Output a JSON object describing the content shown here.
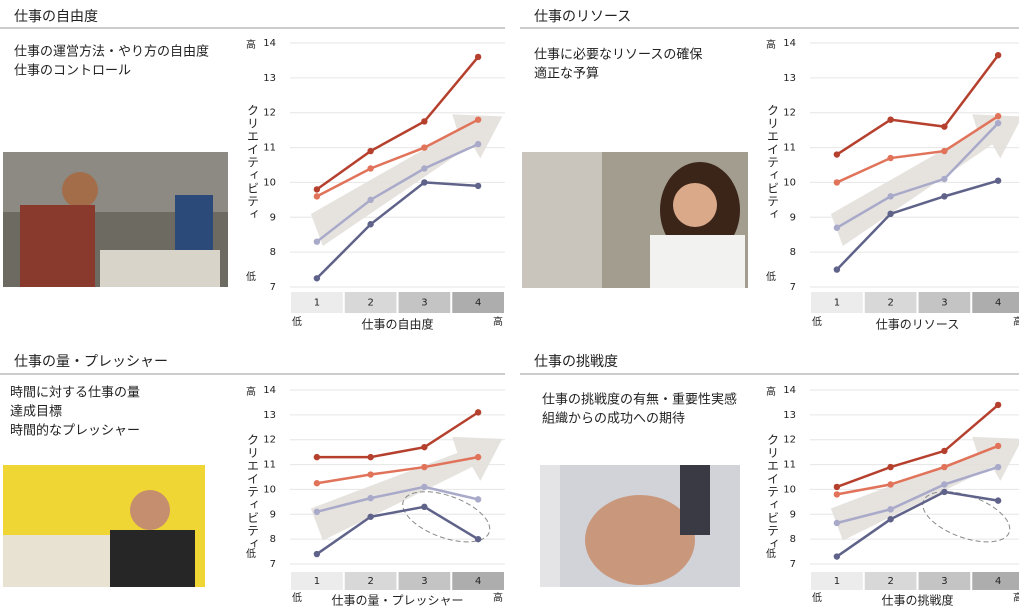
{
  "chart_data": [
    {
      "type": "line",
      "title": "仕事の自由度",
      "description": [
        "仕事の運営方法・やり方の自由度",
        "仕事のコントロール"
      ],
      "ylabel": "クリエイティビティ",
      "y_high_label": "高",
      "y_low_label": "低",
      "xlabel": "仕事の自由度",
      "x_low_label": "低",
      "x_high_label": "高",
      "categories": [
        "1",
        "2",
        "3",
        "4"
      ],
      "ylim": [
        7,
        14
      ],
      "yticks": [
        7,
        8,
        9,
        10,
        11,
        12,
        13,
        14
      ],
      "grid": true,
      "series": [
        {
          "color": "#b5402e",
          "values": [
            9.8,
            10.9,
            11.75,
            13.6
          ]
        },
        {
          "color": "#e0735a",
          "values": [
            9.6,
            10.4,
            11.0,
            11.8
          ]
        },
        {
          "color": "#a9aac9",
          "values": [
            8.3,
            9.5,
            10.4,
            11.1
          ]
        },
        {
          "color": "#5f6289",
          "values": [
            7.25,
            8.8,
            10.0,
            9.9
          ]
        }
      ]
    },
    {
      "type": "line",
      "title": "仕事のリソース",
      "description": [
        "仕事に必要なリソースの確保",
        "適正な予算"
      ],
      "ylabel": "クリエイティビティ",
      "y_high_label": "高",
      "y_low_label": "低",
      "xlabel": "仕事のリソース",
      "x_low_label": "低",
      "x_high_label": "高",
      "categories": [
        "1",
        "2",
        "3",
        "4"
      ],
      "ylim": [
        7,
        14
      ],
      "yticks": [
        7,
        8,
        9,
        10,
        11,
        12,
        13,
        14
      ],
      "grid": true,
      "series": [
        {
          "color": "#b5402e",
          "values": [
            10.8,
            11.8,
            11.6,
            13.65
          ]
        },
        {
          "color": "#e0735a",
          "values": [
            10.0,
            10.7,
            10.9,
            11.9
          ]
        },
        {
          "color": "#a9aac9",
          "values": [
            8.7,
            9.6,
            10.1,
            11.7
          ]
        },
        {
          "color": "#5f6289",
          "values": [
            7.5,
            9.1,
            9.6,
            10.05
          ]
        }
      ]
    },
    {
      "type": "line",
      "title": "仕事の量・プレッシャー",
      "description": [
        "時間に対する仕事の量",
        "達成目標",
        "時間的なプレッシャー"
      ],
      "ylabel": "クリエイティビティ",
      "y_high_label": "高",
      "y_low_label": "低",
      "xlabel": "仕事の量・プレッシャー",
      "x_low_label": "低",
      "x_high_label": "高",
      "categories": [
        "1",
        "2",
        "3",
        "4"
      ],
      "ylim": [
        7,
        14
      ],
      "yticks": [
        7,
        8,
        9,
        10,
        11,
        12,
        13,
        14
      ],
      "grid": true,
      "series": [
        {
          "color": "#b5402e",
          "values": [
            11.3,
            11.3,
            11.7,
            13.1
          ]
        },
        {
          "color": "#e0735a",
          "values": [
            10.25,
            10.6,
            10.9,
            11.3
          ]
        },
        {
          "color": "#a9aac9",
          "values": [
            9.1,
            9.65,
            10.1,
            9.6
          ]
        },
        {
          "color": "#5f6289",
          "values": [
            7.4,
            8.9,
            9.3,
            8.0
          ]
        }
      ]
    },
    {
      "type": "line",
      "title": "仕事の挑戦度",
      "description": [
        "仕事の挑戦度の有無・重要性実感",
        "組織からの成功への期待"
      ],
      "ylabel": "クリエイティビティ",
      "y_high_label": "高",
      "y_low_label": "低",
      "xlabel": "仕事の挑戦度",
      "x_low_label": "低",
      "x_high_label": "高",
      "categories": [
        "1",
        "2",
        "3",
        "4"
      ],
      "ylim": [
        7,
        14
      ],
      "yticks": [
        7,
        8,
        9,
        10,
        11,
        12,
        13,
        14
      ],
      "grid": true,
      "series": [
        {
          "color": "#b5402e",
          "values": [
            10.1,
            10.9,
            11.55,
            13.4
          ]
        },
        {
          "color": "#e0735a",
          "values": [
            9.8,
            10.2,
            10.9,
            11.75
          ]
        },
        {
          "color": "#a9aac9",
          "values": [
            8.65,
            9.2,
            10.2,
            10.9
          ]
        },
        {
          "color": "#5f6289",
          "values": [
            7.3,
            8.8,
            9.9,
            9.55
          ]
        }
      ]
    }
  ]
}
